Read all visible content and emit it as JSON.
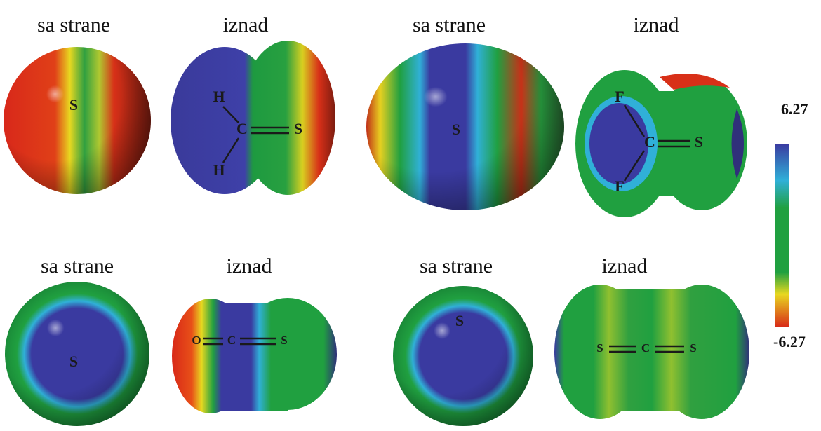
{
  "panels": [
    {
      "side_label": "sa strane",
      "top_label": "iznad",
      "side_atoms": [
        "S"
      ],
      "top_atoms": [
        "H",
        "H",
        "C",
        "S"
      ]
    },
    {
      "side_label": "sa strane",
      "top_label": "iznad",
      "side_atoms": [
        "S"
      ],
      "top_atoms": [
        "F",
        "F",
        "C",
        "S"
      ]
    },
    {
      "side_label": "sa strane",
      "top_label": "iznad",
      "side_atoms": [
        "S"
      ],
      "top_atoms": [
        "O",
        "C",
        "S"
      ]
    },
    {
      "side_label": "sa strane",
      "top_label": "iznad",
      "side_atoms": [
        "S"
      ],
      "top_atoms": [
        "S",
        "C",
        "S"
      ]
    }
  ],
  "colorbar": {
    "max": 6.27,
    "min": -6.27
  }
}
